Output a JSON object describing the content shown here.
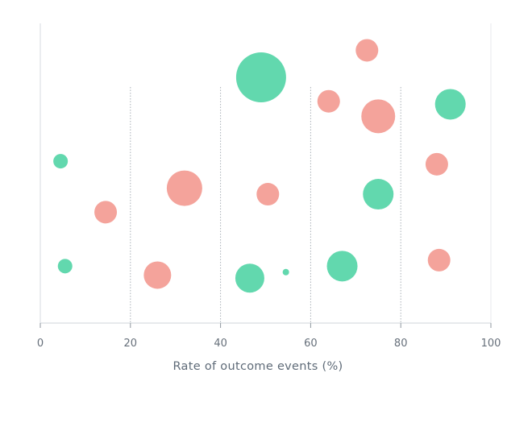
{
  "chart_data": {
    "type": "scatter",
    "title": "",
    "xlabel": "Rate of outcome events (%)",
    "ylabel": "",
    "xlim": [
      0,
      100
    ],
    "x_ticks": [
      "0",
      "20",
      "40",
      "60",
      "80",
      "100"
    ],
    "grid": "vertical dotted lines at 20, 40, 60, 80",
    "legend": "none",
    "series": [
      {
        "color": "#f4a39b",
        "points": [
          {
            "x": 72.5,
            "y": 0.91,
            "size": 14
          },
          {
            "x": 64.0,
            "y": 0.74,
            "size": 14
          },
          {
            "x": 75.0,
            "y": 0.69,
            "size": 21
          },
          {
            "x": 88.0,
            "y": 0.53,
            "size": 14
          },
          {
            "x": 32.0,
            "y": 0.45,
            "size": 22
          },
          {
            "x": 50.5,
            "y": 0.43,
            "size": 14
          },
          {
            "x": 14.5,
            "y": 0.37,
            "size": 14
          },
          {
            "x": 26.0,
            "y": 0.16,
            "size": 17
          },
          {
            "x": 88.5,
            "y": 0.21,
            "size": 14
          }
        ]
      },
      {
        "color": "#62d8ae",
        "points": [
          {
            "x": 49.0,
            "y": 0.82,
            "size": 31
          },
          {
            "x": 91.0,
            "y": 0.73,
            "size": 19
          },
          {
            "x": 4.5,
            "y": 0.54,
            "size": 9
          },
          {
            "x": 75.0,
            "y": 0.43,
            "size": 19
          },
          {
            "x": 67.0,
            "y": 0.19,
            "size": 19
          },
          {
            "x": 46.5,
            "y": 0.15,
            "size": 18
          },
          {
            "x": 54.5,
            "y": 0.17,
            "size": 4
          },
          {
            "x": 5.5,
            "y": 0.19,
            "size": 9
          }
        ]
      }
    ]
  }
}
